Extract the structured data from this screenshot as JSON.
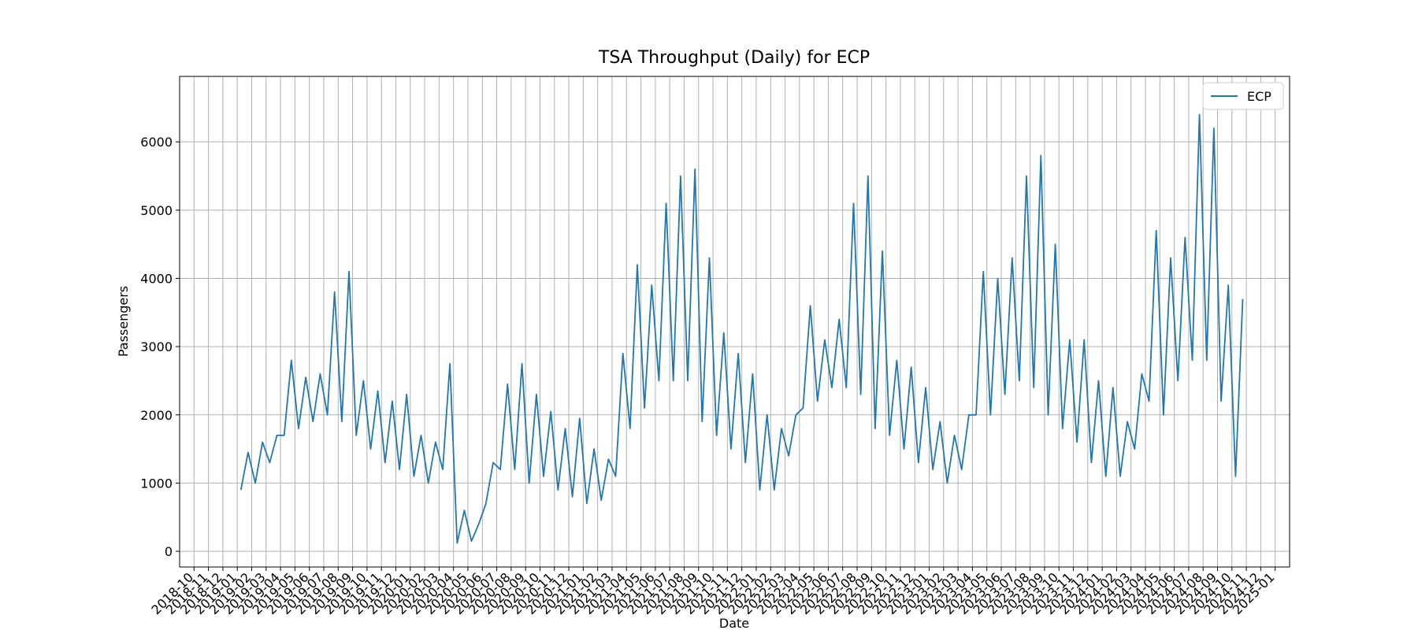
{
  "chart_data": {
    "type": "line",
    "title": "TSA Throughput (Daily) for ECP",
    "xlabel": "Date",
    "ylabel": "Passengers",
    "x": [
      "2019-01",
      "2019-01",
      "2019-02",
      "2019-02",
      "2019-03",
      "2019-03",
      "2019-04",
      "2019-04",
      "2019-05",
      "2019-05",
      "2019-06",
      "2019-06",
      "2019-07",
      "2019-07",
      "2019-08",
      "2019-08",
      "2019-09",
      "2019-09",
      "2019-10",
      "2019-10",
      "2019-11",
      "2019-11",
      "2019-12",
      "2019-12",
      "2020-01",
      "2020-01",
      "2020-02",
      "2020-02",
      "2020-03",
      "2020-03",
      "2020-04",
      "2020-04",
      "2020-05",
      "2020-05",
      "2020-06",
      "2020-06",
      "2020-07",
      "2020-07",
      "2020-08",
      "2020-08",
      "2020-09",
      "2020-09",
      "2020-10",
      "2020-10",
      "2020-11",
      "2020-11",
      "2020-12",
      "2020-12",
      "2021-01",
      "2021-01",
      "2021-02",
      "2021-02",
      "2021-03",
      "2021-03",
      "2021-04",
      "2021-04",
      "2021-05",
      "2021-05",
      "2021-06",
      "2021-06",
      "2021-07",
      "2021-07",
      "2021-08",
      "2021-08",
      "2021-09",
      "2021-09",
      "2021-10",
      "2021-10",
      "2021-11",
      "2021-11",
      "2021-12",
      "2021-12",
      "2022-01",
      "2022-01",
      "2022-02",
      "2022-02",
      "2022-03",
      "2022-03",
      "2022-04",
      "2022-04",
      "2022-05",
      "2022-05",
      "2022-06",
      "2022-06",
      "2022-07",
      "2022-07",
      "2022-08",
      "2022-08",
      "2022-09",
      "2022-09",
      "2022-10",
      "2022-10",
      "2022-11",
      "2022-11",
      "2022-12",
      "2022-12",
      "2023-01",
      "2023-01",
      "2023-02",
      "2023-02",
      "2023-03",
      "2023-03",
      "2023-04",
      "2023-04",
      "2023-05",
      "2023-05",
      "2023-06",
      "2023-06",
      "2023-07",
      "2023-07",
      "2023-08",
      "2023-08",
      "2023-09",
      "2023-09",
      "2023-10",
      "2023-10",
      "2023-11",
      "2023-11",
      "2023-12",
      "2023-12",
      "2024-01",
      "2024-01",
      "2024-02",
      "2024-02",
      "2024-03",
      "2024-03",
      "2024-04",
      "2024-04",
      "2024-05",
      "2024-05",
      "2024-06",
      "2024-06",
      "2024-07",
      "2024-07",
      "2024-08",
      "2024-08",
      "2024-09",
      "2024-09",
      "2024-10",
      "2024-10"
    ],
    "series": [
      {
        "name": "ECP",
        "color": "#1f77b4",
        "values": [
          900,
          1450,
          1000,
          1600,
          1300,
          1700,
          1700,
          2800,
          1800,
          2550,
          1900,
          2600,
          2000,
          3800,
          1900,
          4100,
          1700,
          2500,
          1500,
          2350,
          1300,
          2200,
          1200,
          2300,
          1100,
          1700,
          1000,
          1600,
          1200,
          2750,
          120,
          600,
          150,
          400,
          700,
          1300,
          1200,
          2450,
          1200,
          2750,
          1000,
          2300,
          1100,
          2050,
          900,
          1800,
          800,
          1950,
          700,
          1500,
          750,
          1350,
          1100,
          2900,
          1800,
          4200,
          2100,
          3900,
          2500,
          5100,
          2500,
          5500,
          2500,
          5600,
          1900,
          4300,
          1700,
          3200,
          1500,
          2900,
          1300,
          2600,
          900,
          2000,
          900,
          1800,
          1400,
          2000,
          2100,
          3600,
          2200,
          3100,
          2400,
          3400,
          2400,
          5100,
          2300,
          5500,
          1800,
          4400,
          1700,
          2800,
          1500,
          2700,
          1300,
          2400,
          1200,
          1900,
          1000,
          1700,
          1200,
          2000,
          2000,
          4100,
          2000,
          4000,
          2300,
          4300,
          2500,
          5500,
          2400,
          5800,
          2000,
          4500,
          1800,
          3100,
          1600,
          3100,
          1300,
          2500,
          1100,
          2400,
          1100,
          1900,
          1500,
          2600,
          2200,
          4700,
          2000,
          4300,
          2500,
          4600,
          2800,
          6400,
          2800,
          6200,
          2200,
          3900,
          1100,
          3700
        ]
      }
    ],
    "xlim": [
      "2018-09",
      "2025-02"
    ],
    "xticks": [
      "2018-10",
      "2018-11",
      "2018-12",
      "2019-01",
      "2019-02",
      "2019-03",
      "2019-04",
      "2019-05",
      "2019-06",
      "2019-07",
      "2019-08",
      "2019-09",
      "2019-10",
      "2019-11",
      "2019-12",
      "2020-01",
      "2020-02",
      "2020-03",
      "2020-04",
      "2020-05",
      "2020-06",
      "2020-07",
      "2020-08",
      "2020-09",
      "2020-10",
      "2020-11",
      "2020-12",
      "2021-01",
      "2021-02",
      "2021-03",
      "2021-04",
      "2021-05",
      "2021-06",
      "2021-07",
      "2021-08",
      "2021-09",
      "2021-10",
      "2021-11",
      "2021-12",
      "2022-01",
      "2022-02",
      "2022-03",
      "2022-04",
      "2022-05",
      "2022-06",
      "2022-07",
      "2022-08",
      "2022-09",
      "2022-10",
      "2022-11",
      "2022-12",
      "2023-01",
      "2023-02",
      "2023-03",
      "2023-04",
      "2023-05",
      "2023-06",
      "2023-07",
      "2023-08",
      "2023-09",
      "2023-10",
      "2023-11",
      "2023-12",
      "2024-01",
      "2024-02",
      "2024-03",
      "2024-04",
      "2024-05",
      "2024-06",
      "2024-07",
      "2024-08",
      "2024-09",
      "2024-10",
      "2024-11",
      "2024-12",
      "2025-01"
    ],
    "ylim": [
      -230,
      6960
    ],
    "yticks": [
      0,
      1000,
      2000,
      3000,
      4000,
      5000,
      6000
    ],
    "grid": true,
    "legend": "upper right"
  }
}
